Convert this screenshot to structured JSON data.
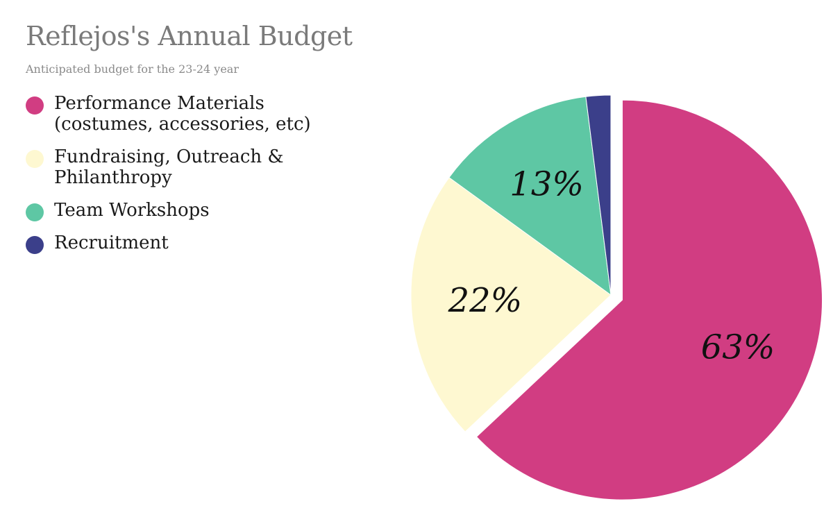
{
  "title": "Reflejos's Annual Budget",
  "subtitle": "Anticipated budget for the 23-24 year",
  "chart_data": {
    "type": "pie",
    "title": "Reflejos's Annual Budget",
    "subtitle": "Anticipated budget for the 23-24 year",
    "legend_position": "top-left",
    "slices": [
      {
        "name": "Performance Materials\n(costumes, accessories, etc)",
        "value": 63,
        "label": "63%",
        "color": "#d13d82",
        "exploded": true
      },
      {
        "name": "Fundraising, Outreach &\nPhilanthropy",
        "value": 22,
        "label": "22%",
        "color": "#fef8d1"
      },
      {
        "name": "Team Workshops",
        "value": 13,
        "label": "13%",
        "color": "#5ec7a4"
      },
      {
        "name": "Recruitment",
        "value": 2,
        "label": "",
        "color": "#3b3f8a"
      }
    ]
  }
}
